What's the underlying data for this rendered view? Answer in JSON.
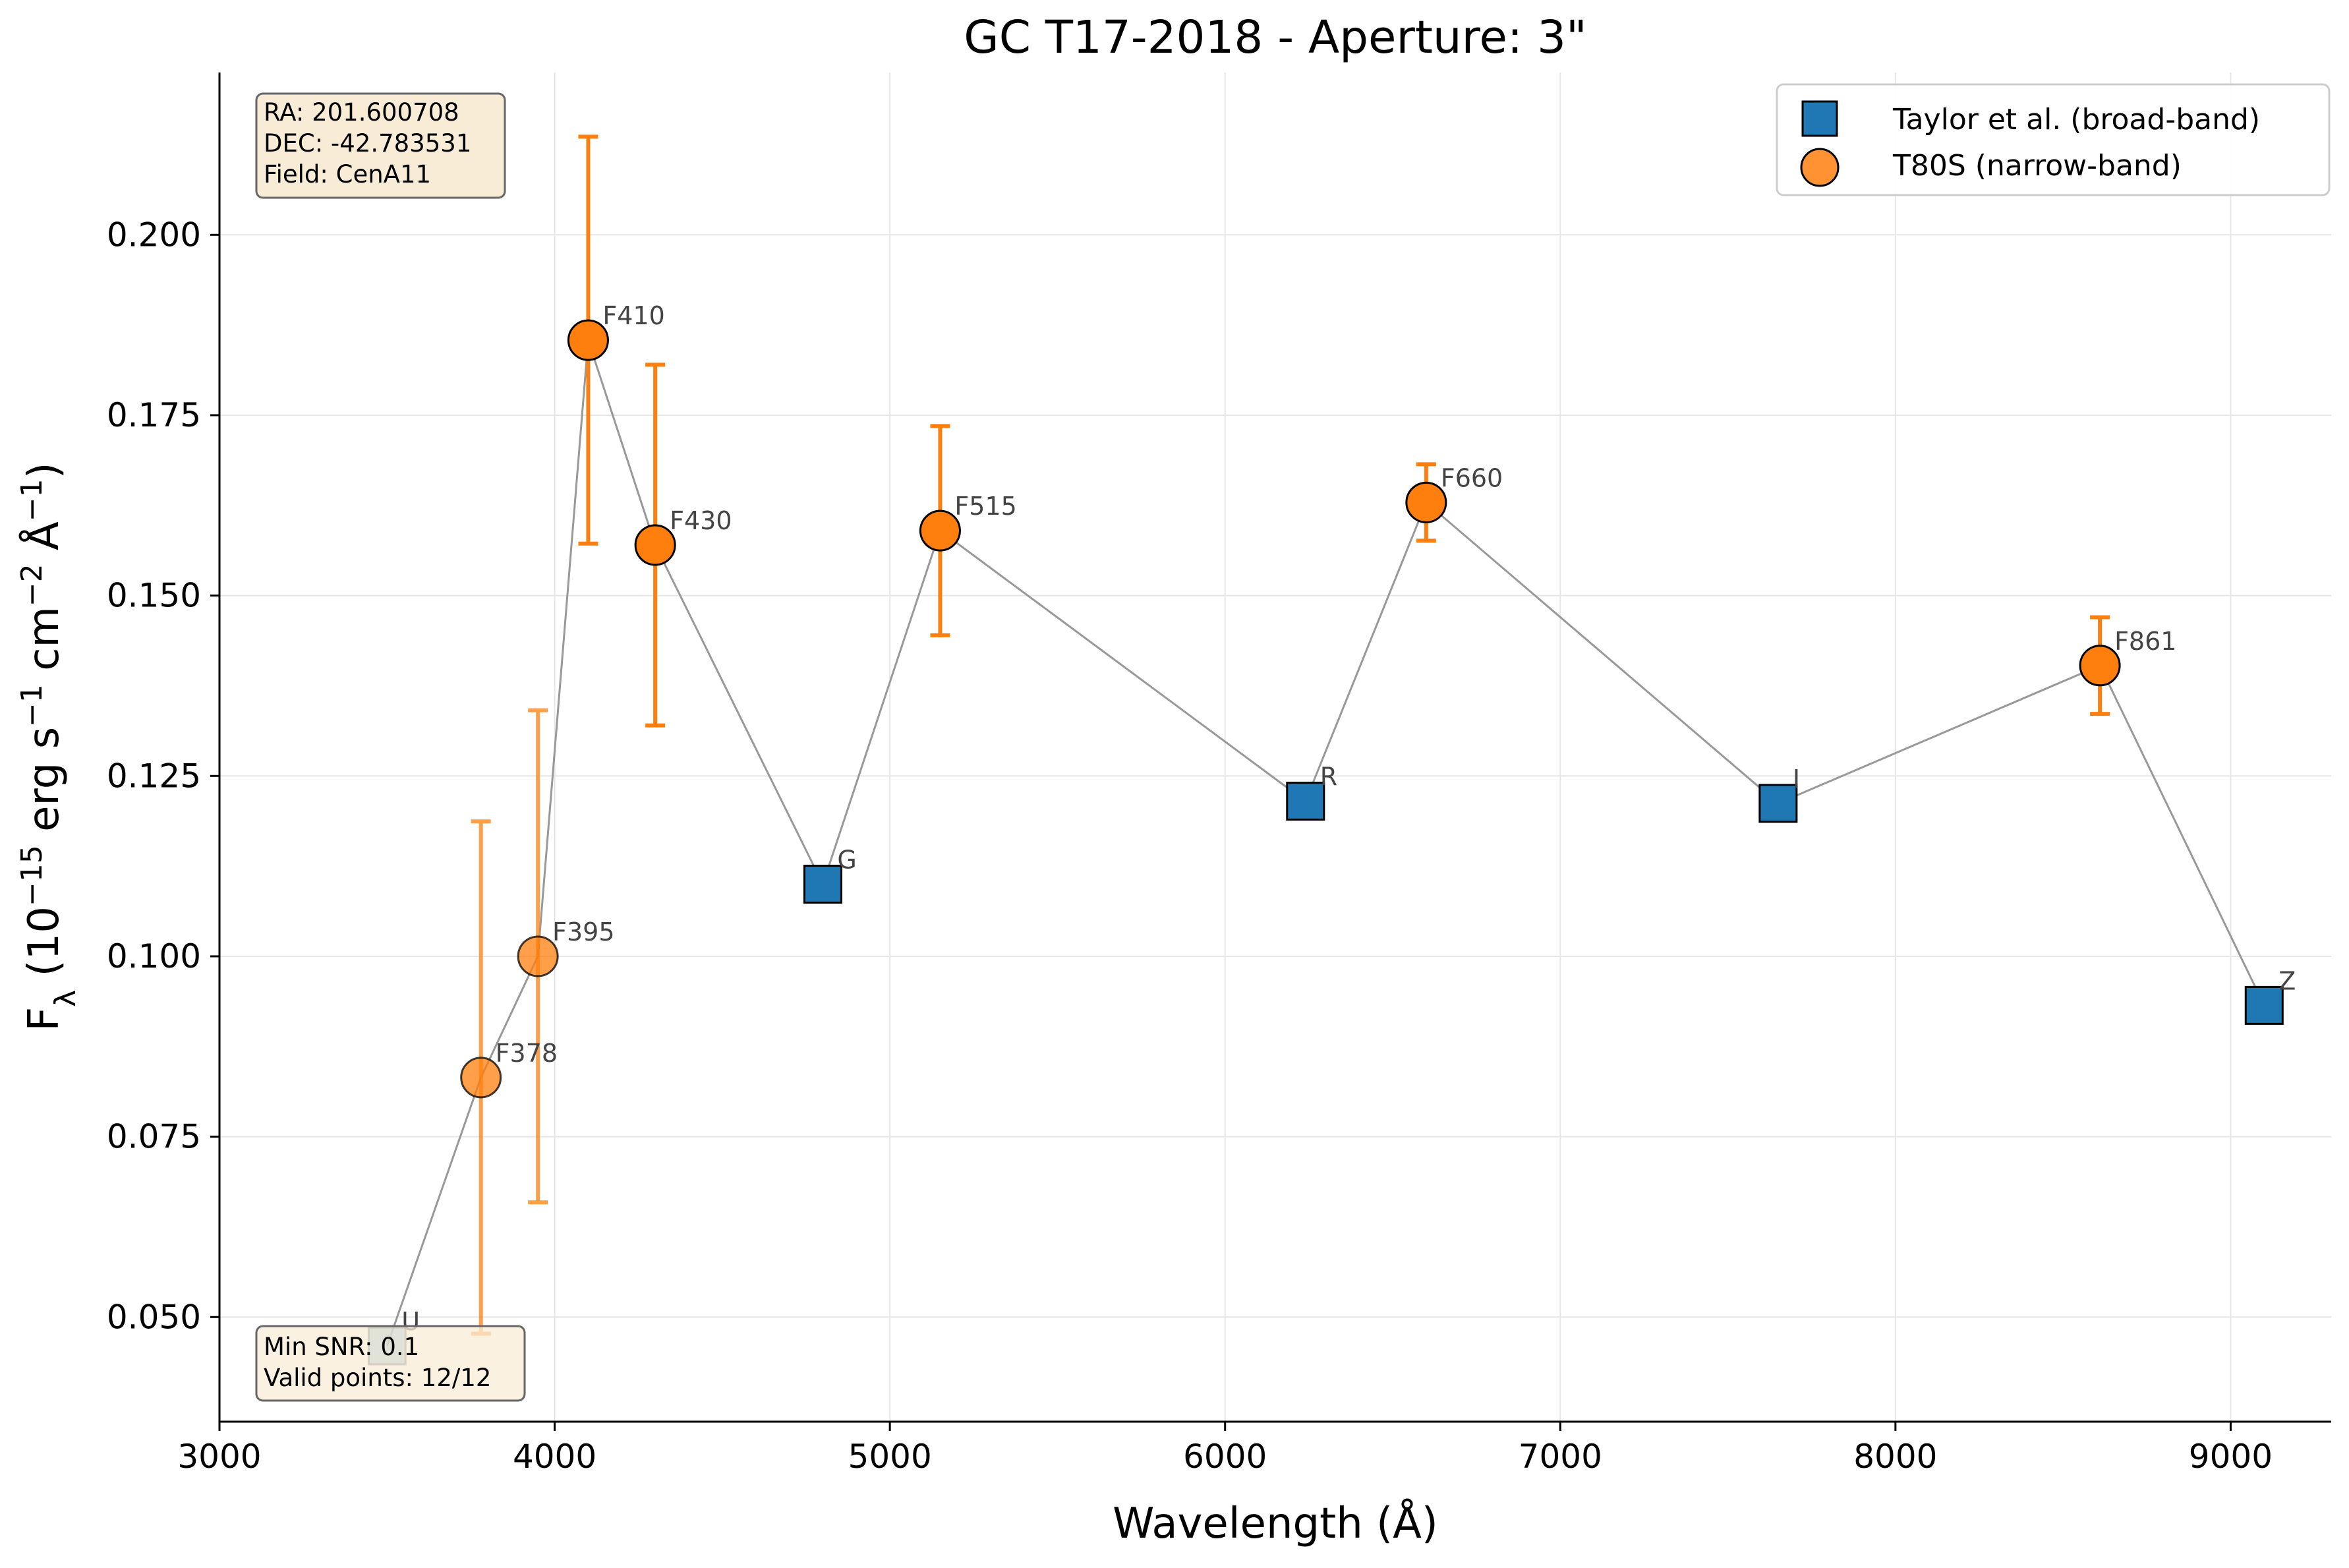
{
  "chart_data": {
    "type": "scatter",
    "title": "GC T17-2018 - Aperture: 3\"",
    "xlabel": "Wavelength (Å)",
    "ylabel": {
      "base": "F",
      "sub": "λ",
      "rest_parts": [
        " (10",
        "−15",
        " erg s",
        "−1",
        " cm",
        "−2",
        " Å",
        "−1",
        ")"
      ]
    },
    "xlim": [
      3000,
      9300
    ],
    "ylim": [
      0.0355,
      0.2225
    ],
    "x_ticks": [
      3000,
      4000,
      5000,
      6000,
      7000,
      8000,
      9000
    ],
    "x_tick_labels": [
      "3000",
      "4000",
      "5000",
      "6000",
      "7000",
      "8000",
      "9000"
    ],
    "y_ticks": [
      0.05,
      0.075,
      0.1,
      0.125,
      0.15,
      0.175,
      0.2
    ],
    "y_tick_labels": [
      "0.050",
      "0.075",
      "0.100",
      "0.125",
      "0.150",
      "0.175",
      "0.200"
    ],
    "grid": true,
    "legend_position": "top-right",
    "legend": [
      "Taylor et al. (broad-band)",
      "T80S (narrow-band)"
    ],
    "series": [
      {
        "name": "Taylor et al. (broad-band)",
        "marker": "square",
        "color": "#1f77b4",
        "points": [
          {
            "label": "U",
            "x": 3500,
            "y": 0.046,
            "alpha": 0.45
          },
          {
            "label": "G",
            "x": 4800,
            "y": 0.11
          },
          {
            "label": "R",
            "x": 6240,
            "y": 0.1215
          },
          {
            "label": "I",
            "x": 7650,
            "y": 0.1212
          },
          {
            "label": "Z",
            "x": 9100,
            "y": 0.0932
          }
        ]
      },
      {
        "name": "T80S (narrow-band)",
        "marker": "circle",
        "color": "#ff7f0e",
        "points": [
          {
            "label": "F378",
            "x": 3780,
            "y": 0.0832,
            "err": 0.0355,
            "alpha": 0.75
          },
          {
            "label": "F395",
            "x": 3950,
            "y": 0.1,
            "err": 0.0341,
            "alpha": 0.75
          },
          {
            "label": "F410",
            "x": 4100,
            "y": 0.1854,
            "err": 0.0282
          },
          {
            "label": "F430",
            "x": 4300,
            "y": 0.157,
            "err": 0.025
          },
          {
            "label": "F515",
            "x": 5150,
            "y": 0.159,
            "err": 0.0145
          },
          {
            "label": "F660",
            "x": 6600,
            "y": 0.1629,
            "err": 0.0053
          },
          {
            "label": "F861",
            "x": 8610,
            "y": 0.1403,
            "err": 0.0067
          }
        ]
      }
    ],
    "connection_order": [
      "U",
      "F378",
      "F395",
      "F410",
      "F430",
      "G",
      "F515",
      "R",
      "F660",
      "I",
      "F861",
      "Z"
    ],
    "info_box": [
      "RA: 201.600708",
      "DEC: -42.783531",
      "Field: CenA11"
    ],
    "stats_box": [
      "Min SNR: 0.1",
      "Valid points: 12/12"
    ]
  },
  "colors": {
    "broad_band": "#1f77b4",
    "narrow_band": "#ff7f0e",
    "connector": "#999999",
    "box_fill": "#f8ecd6",
    "grid": "#e6e6e6"
  }
}
